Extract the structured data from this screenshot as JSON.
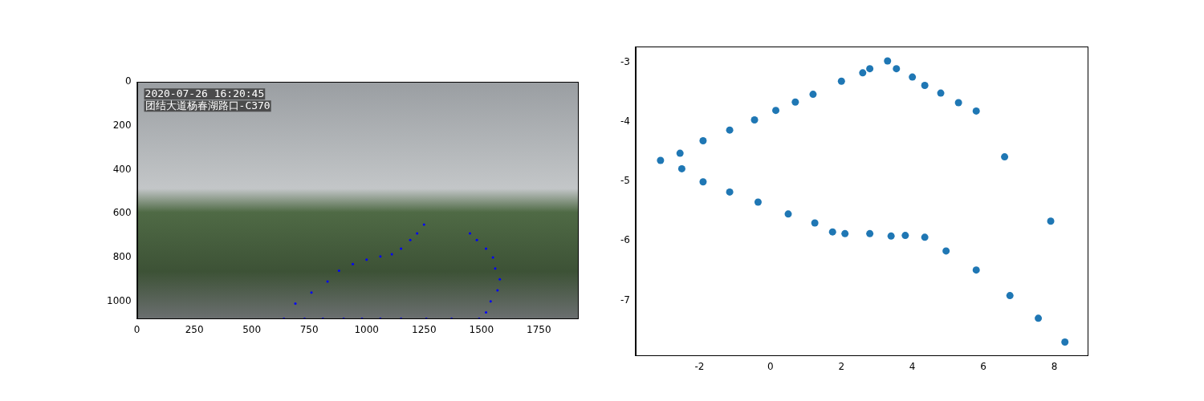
{
  "chart_data": [
    {
      "type": "scatter",
      "color": "blue",
      "marker": "o",
      "annotations": [
        {
          "text": "2020-07-26 16:20:45",
          "x": 35,
          "y": 55
        },
        {
          "text": "团结大道杨春湖路口-C370",
          "x": 35,
          "y": 110
        }
      ],
      "x": [
        640,
        730,
        810,
        900,
        980,
        1060,
        1150,
        1260,
        1370,
        1490,
        690,
        760,
        830,
        880,
        940,
        1000,
        1060,
        1110,
        1150,
        1190,
        1220,
        1250,
        1450,
        1480,
        1520,
        1550,
        1560,
        1580,
        1570,
        1540,
        1520
      ],
      "y": [
        1080,
        1080,
        1080,
        1080,
        1080,
        1080,
        1080,
        1080,
        1080,
        1080,
        1010,
        960,
        910,
        860,
        830,
        810,
        795,
        785,
        760,
        720,
        690,
        650,
        690,
        720,
        760,
        800,
        850,
        900,
        950,
        1000,
        1050
      ],
      "xlim": [
        0,
        1920
      ],
      "ylim": [
        1080,
        0
      ],
      "xticks": [
        0,
        250,
        500,
        750,
        1000,
        1250,
        1500,
        1750
      ],
      "yticks": [
        0,
        200,
        400,
        600,
        800,
        1000
      ],
      "grid": false
    },
    {
      "type": "scatter",
      "color": "#1f77b4",
      "marker": "o",
      "x": [
        -3.1,
        -2.55,
        -2.5,
        -1.9,
        -1.9,
        -1.15,
        -1.15,
        -0.45,
        -0.35,
        0.15,
        0.5,
        0.7,
        1.2,
        1.25,
        1.75,
        2.0,
        2.1,
        2.6,
        2.8,
        2.8,
        3.3,
        3.4,
        3.55,
        3.8,
        4.0,
        4.35,
        4.35,
        4.8,
        4.95,
        5.3,
        5.8,
        5.8,
        6.6,
        6.75,
        7.55,
        7.9,
        8.3
      ],
      "y": [
        -4.65,
        -4.53,
        -4.79,
        -4.32,
        -5.01,
        -4.14,
        -5.18,
        -3.97,
        -5.35,
        -3.81,
        -5.55,
        -3.67,
        -3.54,
        -5.7,
        -5.85,
        -3.32,
        -5.88,
        -3.18,
        -3.11,
        -5.88,
        -2.98,
        -5.92,
        -3.11,
        -5.91,
        -3.25,
        -3.39,
        -5.94,
        -3.52,
        -6.17,
        -3.68,
        -3.82,
        -6.49,
        -4.59,
        -6.92,
        -7.3,
        -5.67,
        -7.7
      ],
      "xlim": [
        -3.8,
        8.94
      ],
      "ylim": [
        -7.93,
        -2.74
      ],
      "xticks": [
        -2,
        0,
        2,
        4,
        6,
        8
      ],
      "yticks": [
        -7,
        -6,
        -5,
        -4,
        -3
      ],
      "grid": false
    }
  ]
}
